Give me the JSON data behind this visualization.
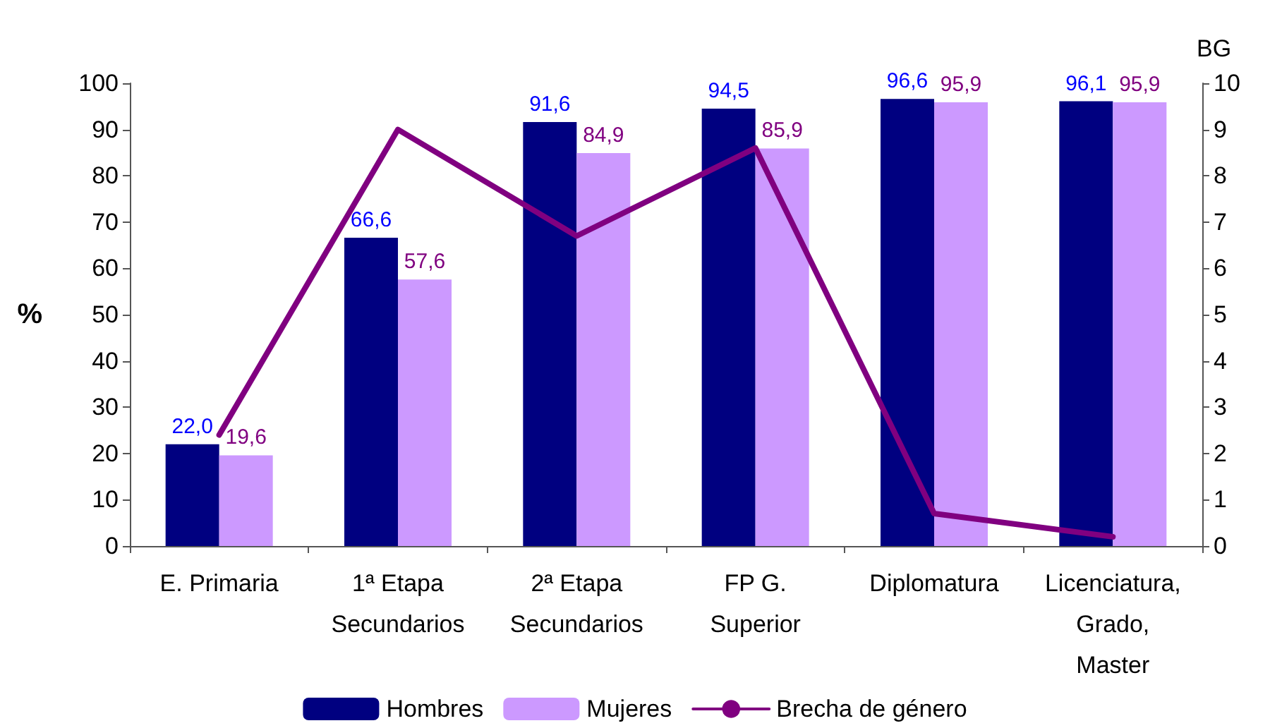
{
  "chart_data": {
    "type": "bar",
    "ylabel": "%",
    "y2label": "BG",
    "categories": [
      "E. Primaria",
      "1ª Etapa\nSecundarios",
      "2ª Etapa\nSecundarios",
      "FP G.\nSuperior",
      "Diplomatura",
      "Licenciatura,\nGrado,\nMaster"
    ],
    "series": [
      {
        "name": "Hombres",
        "color": "#000080",
        "values": [
          22.0,
          66.6,
          91.6,
          94.5,
          96.6,
          96.1
        ],
        "value_labels": [
          "22,0",
          "66,6",
          "91,6",
          "94,5",
          "96,6",
          "96,1"
        ]
      },
      {
        "name": "Mujeres",
        "color": "#cc99ff",
        "values": [
          19.6,
          57.6,
          84.9,
          85.9,
          95.9,
          95.9
        ],
        "value_labels": [
          "19,6",
          "57,6",
          "84,9",
          "85,9",
          "95,9",
          "95,9"
        ]
      },
      {
        "name": "Brecha de género",
        "type": "line",
        "axis": "y2",
        "color": "#800080",
        "values": [
          2.4,
          9.0,
          6.7,
          8.6,
          0.7,
          0.2
        ]
      }
    ],
    "ylim": [
      0,
      100
    ],
    "yticks": [
      0,
      10,
      20,
      30,
      40,
      50,
      60,
      70,
      80,
      90,
      100
    ],
    "y2lim": [
      0,
      10
    ],
    "y2ticks": [
      0,
      1,
      2,
      3,
      4,
      5,
      6,
      7,
      8,
      9,
      10
    ],
    "legend": "bottom",
    "grid": false,
    "marker": "none",
    "line_style": "solid"
  }
}
